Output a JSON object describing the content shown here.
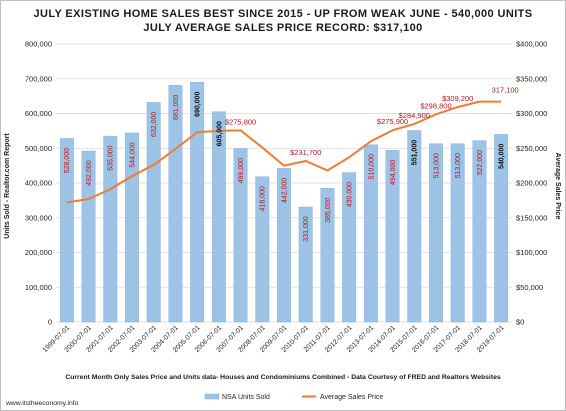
{
  "title_line1": "JULY EXISTING HOME SALES BEST SINCE 2015 - UP FROM WEAK JUNE  - 540,000 UNITS",
  "title_line2": "JULY AVERAGE SALES PRICE RECORD: $317,100",
  "footer_note": "Current Month Only Sales Price and Units data- Houses and Condominiums Combined - Data Courtesy of FRED and Realtors Websites",
  "site": "www.itstheeconomy.info",
  "colors": {
    "bar": "#9dc3e6",
    "bar_edge": "#7faad4",
    "line": "#ed7d31",
    "label_red": "#b01a1a"
  },
  "chart_data": {
    "type": "bar",
    "categories": [
      "1999-07-01",
      "2000-07-01",
      "2001-07-01",
      "2002-07-01",
      "2003-07-01",
      "2004-07-01",
      "2005-07-01",
      "2006-07-01",
      "2007-07-01",
      "2008-07-01",
      "2009-07-01",
      "2010-07-01",
      "2011-07-01",
      "2012-07-01",
      "2013-07-01",
      "2014-07-01",
      "2015-07-01",
      "2016-07-01",
      "2017-07-01",
      "2018-07-01",
      "2019-07-01"
    ],
    "series": [
      {
        "name": "NSA Units Sold",
        "type": "bar",
        "axis": "left",
        "values": [
          528000,
          492000,
          535000,
          544000,
          632000,
          681000,
          690000,
          605000,
          499000,
          418000,
          442000,
          331000,
          385000,
          430000,
          510000,
          494000,
          551000,
          513000,
          513000,
          522000,
          540000
        ],
        "labels": [
          "528,000",
          "492,000",
          "535,000",
          "544,000",
          "632,000",
          "681,000",
          "690,000",
          "605,000",
          "499,000",
          "418,000",
          "442,000",
          "331,000",
          "385,000",
          "430,000",
          "510,000",
          "494,000",
          "551,000",
          "513,000",
          "513,000",
          "522,000",
          "540,000"
        ],
        "dark_labels": [
          6,
          7,
          16,
          20
        ]
      },
      {
        "name": "Average Sales Price",
        "type": "line",
        "axis": "right",
        "values": [
          172000,
          177000,
          191000,
          210000,
          226000,
          249000,
          273000,
          275000,
          275800,
          251000,
          225000,
          231700,
          218000,
          237000,
          260000,
          275900,
          284900,
          298800,
          309200,
          317100,
          317100
        ],
        "labeled_points": [
          {
            "index": 8,
            "text": "$275,800"
          },
          {
            "index": 11,
            "text": "$231,700"
          },
          {
            "index": 15,
            "text": "$275,900"
          },
          {
            "index": 16,
            "text": "$284,900"
          },
          {
            "index": 17,
            "text": "$298,800"
          },
          {
            "index": 18,
            "text": "$309,200"
          },
          {
            "index": 20,
            "text": "317,100"
          }
        ]
      }
    ],
    "y_left": {
      "label": "Units Sold - Realtor.com Report",
      "min": 0,
      "max": 800000,
      "step": 100000,
      "ticks": [
        "0",
        "100,000",
        "200,000",
        "300,000",
        "400,000",
        "500,000",
        "600,000",
        "700,000",
        "800,000"
      ]
    },
    "y_right": {
      "label": "Average Sales Price",
      "min": 0,
      "max": 400000,
      "step": 50000,
      "ticks": [
        "$0",
        "$50,000",
        "$100,000",
        "$150,000",
        "$200,000",
        "$250,000",
        "$300,000",
        "$350,000",
        "$400,000"
      ]
    },
    "grid": true,
    "legend": "bottom"
  }
}
